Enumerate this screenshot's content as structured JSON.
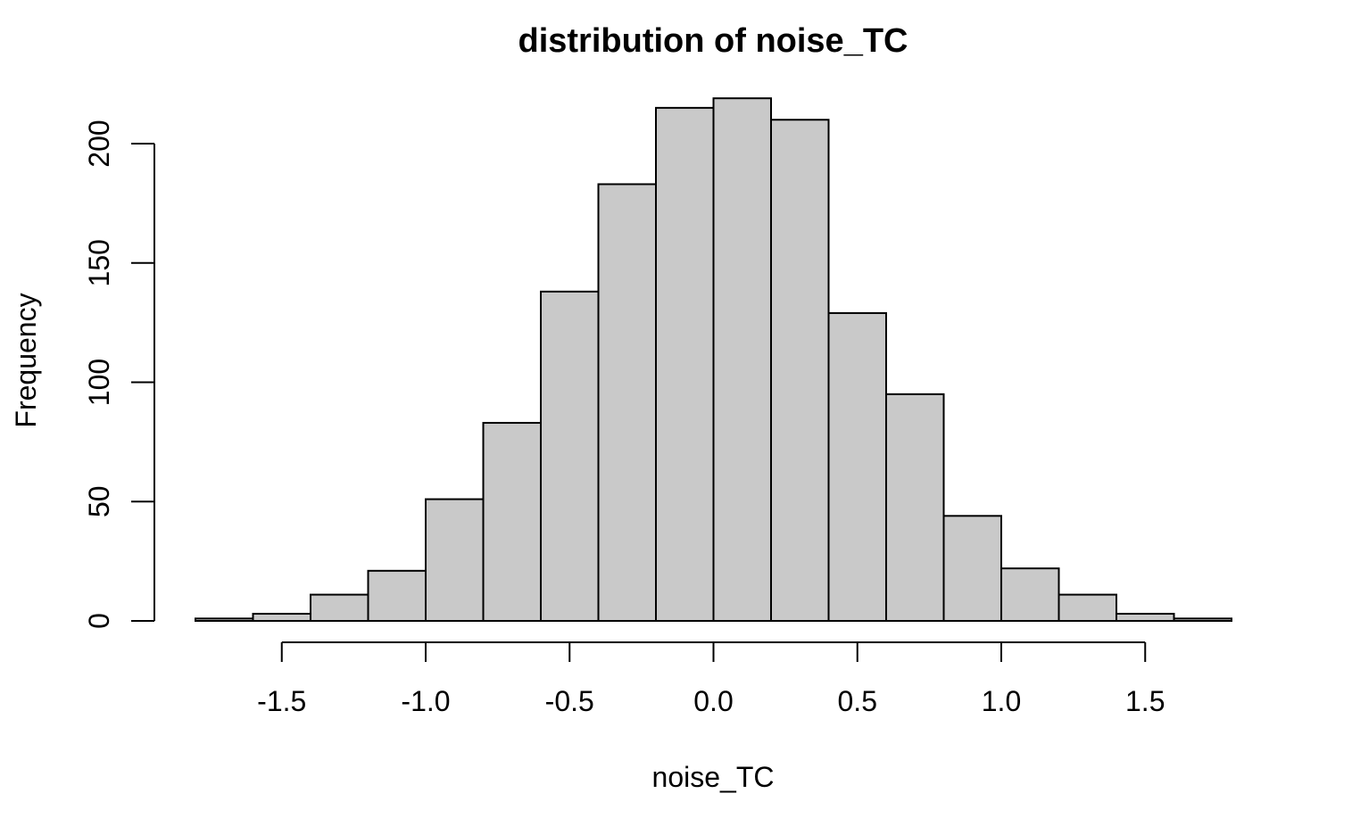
{
  "chart_data": {
    "type": "bar",
    "subtype": "histogram",
    "title": "distribution of noise_TC",
    "xlabel": "noise_TC",
    "ylabel": "Frequency",
    "bin_edges": [
      -1.8,
      -1.6,
      -1.4,
      -1.2,
      -1.0,
      -0.8,
      -0.6,
      -0.4,
      -0.2,
      0.0,
      0.2,
      0.4,
      0.6,
      0.8,
      1.0,
      1.2,
      1.4,
      1.6,
      1.8
    ],
    "values": [
      1,
      3,
      11,
      21,
      51,
      83,
      138,
      183,
      215,
      219,
      210,
      129,
      95,
      44,
      22,
      11,
      3,
      1
    ],
    "xticks": [
      -1.5,
      -1.0,
      -0.5,
      0.0,
      0.5,
      1.0,
      1.5
    ],
    "xtick_labels": [
      "-1.5",
      "-1.0",
      "-0.5",
      "0.0",
      "0.5",
      "1.0",
      "1.5"
    ],
    "yticks": [
      0,
      50,
      100,
      150,
      200
    ],
    "ytick_labels": [
      "0",
      "50",
      "100",
      "150",
      "200"
    ],
    "xlim": [
      -1.8,
      1.8
    ],
    "ylim": [
      0,
      219
    ],
    "bar_fill": "#c9c9c9",
    "bar_edge": "#000000",
    "grid": false
  }
}
